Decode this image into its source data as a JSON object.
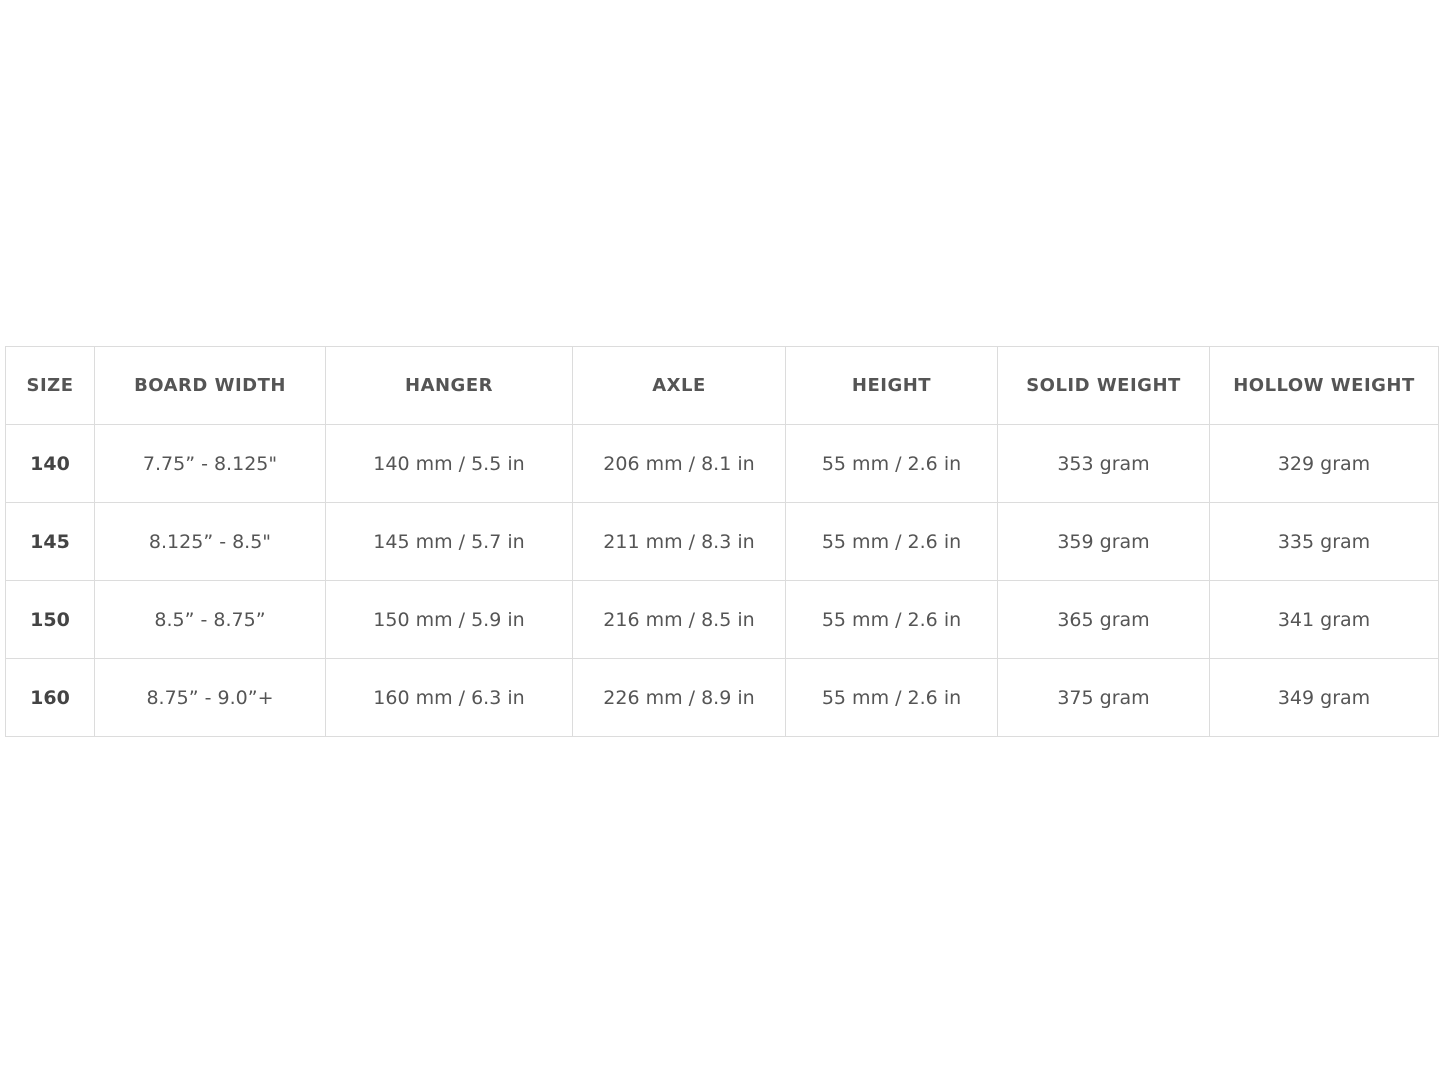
{
  "table": {
    "headers": [
      "SIZE",
      "BOARD WIDTH",
      "HANGER",
      "AXLE",
      "HEIGHT",
      "SOLID WEIGHT",
      "HOLLOW WEIGHT"
    ],
    "rows": [
      [
        "140",
        "7.75” - 8.125\"",
        "140 mm / 5.5 in",
        "206 mm / 8.1 in",
        "55 mm / 2.6 in",
        "353 gram",
        "329 gram"
      ],
      [
        "145",
        "8.125” - 8.5\"",
        "145 mm / 5.7 in",
        "211 mm / 8.3 in",
        "55 mm / 2.6 in",
        "359 gram",
        "335 gram"
      ],
      [
        "150",
        "8.5” - 8.75”",
        "150 mm / 5.9 in",
        "216 mm / 8.5 in",
        "55 mm / 2.6 in",
        "365 gram",
        "341 gram"
      ],
      [
        "160",
        "8.75” - 9.0”+",
        "160 mm / 6.3 in",
        "226 mm / 8.9 in",
        "55 mm / 2.6 in",
        "375 gram",
        "349 gram"
      ]
    ]
  }
}
